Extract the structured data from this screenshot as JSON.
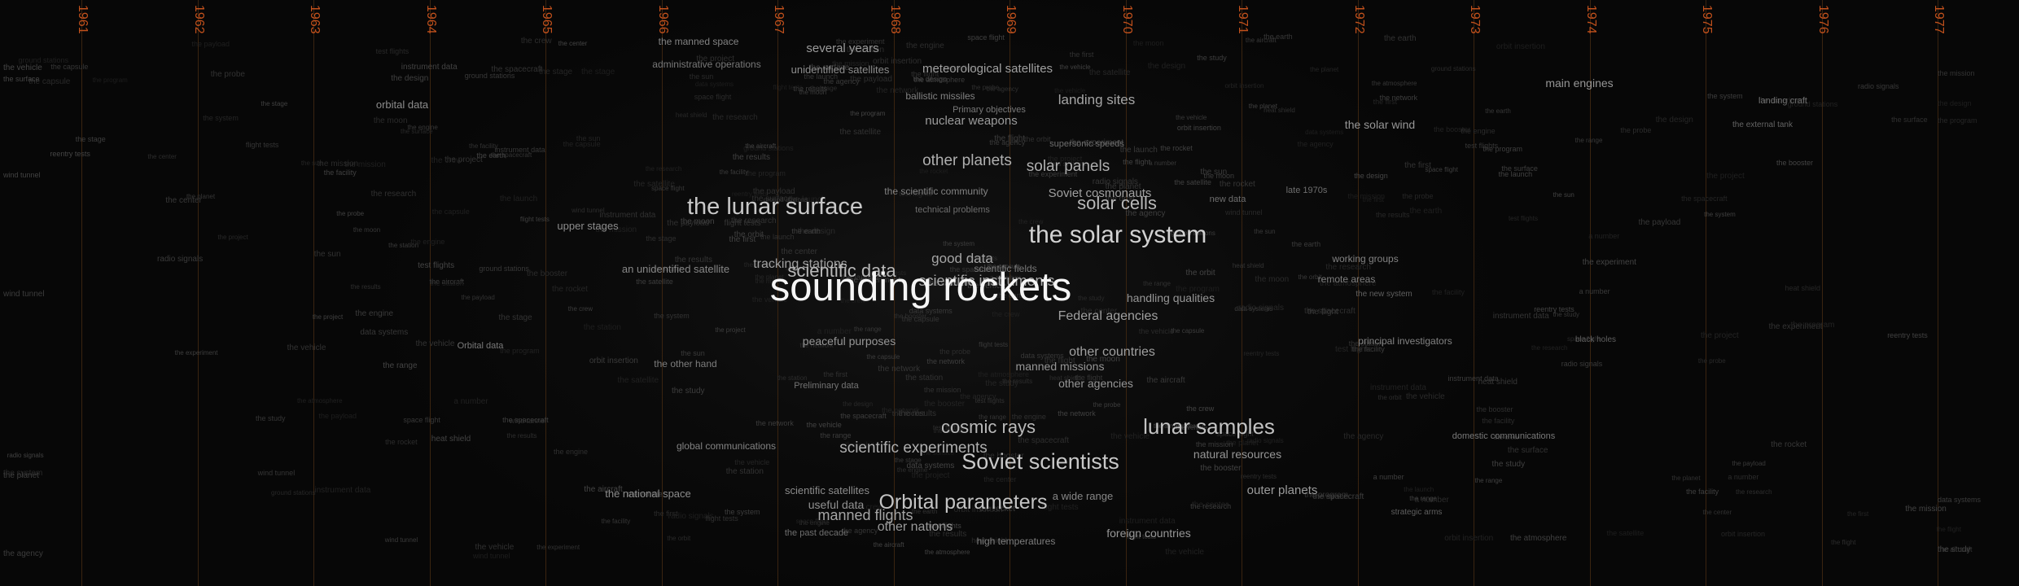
{
  "timeline": {
    "years": [
      "1961",
      "1962",
      "1963",
      "1964",
      "1965",
      "1966",
      "1967",
      "1968",
      "1969",
      "1970",
      "1971",
      "1972",
      "1973",
      "1974",
      "1975",
      "1976",
      "1977"
    ]
  },
  "colors": {
    "background": "#070707",
    "year_label": "#c2511c",
    "year_line": "#3a2410"
  },
  "phrases": [
    {
      "text": "the manned space",
      "size": 12,
      "grey": 130
    },
    {
      "text": "several years",
      "size": 15,
      "grey": 155
    },
    {
      "text": "administrative operations",
      "size": 12,
      "grey": 120
    },
    {
      "text": "unidentified satellites",
      "size": 13,
      "grey": 140
    },
    {
      "text": "meteorological satellites",
      "size": 15,
      "grey": 160
    },
    {
      "text": "main engines",
      "size": 14,
      "grey": 150
    },
    {
      "text": "orbital data",
      "size": 13,
      "grey": 140
    },
    {
      "text": "ballistic missiles",
      "size": 12,
      "grey": 130
    },
    {
      "text": "landing sites",
      "size": 17,
      "grey": 165
    },
    {
      "text": "landing craft",
      "size": 11,
      "grey": 110
    },
    {
      "text": "Primary objectives",
      "size": 11,
      "grey": 120
    },
    {
      "text": "nuclear weapons",
      "size": 15,
      "grey": 155
    },
    {
      "text": "the solar wind",
      "size": 14,
      "grey": 150
    },
    {
      "text": "the external tank",
      "size": 10,
      "grey": 100
    },
    {
      "text": "other planets",
      "size": 19,
      "grey": 175
    },
    {
      "text": "solar panels",
      "size": 19,
      "grey": 175
    },
    {
      "text": "the scientific community",
      "size": 12,
      "grey": 130
    },
    {
      "text": "Soviet cosmonauts",
      "size": 15,
      "grey": 160
    },
    {
      "text": "the lunar surface",
      "size": 29,
      "grey": 200
    },
    {
      "text": "solar cells",
      "size": 22,
      "grey": 185
    },
    {
      "text": "upper stages",
      "size": 13,
      "grey": 140
    },
    {
      "text": "the solar system",
      "size": 30,
      "grey": 210
    },
    {
      "text": "good data",
      "size": 17,
      "grey": 165
    },
    {
      "text": "tracking stations",
      "size": 16,
      "grey": 160
    },
    {
      "text": "an unidentified satellite",
      "size": 13,
      "grey": 135
    },
    {
      "text": "scientific data",
      "size": 22,
      "grey": 185
    },
    {
      "text": "working groups",
      "size": 12,
      "grey": 130
    },
    {
      "text": "scientific instruments",
      "size": 18,
      "grey": 170
    },
    {
      "text": "remote areas",
      "size": 12,
      "grey": 125
    },
    {
      "text": "sounding rockets",
      "size": 49,
      "grey": 245
    },
    {
      "text": "handling qualities",
      "size": 14,
      "grey": 150
    },
    {
      "text": "Federal agencies",
      "size": 16,
      "grey": 160
    },
    {
      "text": "peaceful purposes",
      "size": 14,
      "grey": 150
    },
    {
      "text": "principal investigators",
      "size": 12,
      "grey": 130
    },
    {
      "text": "Orbital data",
      "size": 11,
      "grey": 120
    },
    {
      "text": "other countries",
      "size": 16,
      "grey": 160
    },
    {
      "text": "the other hand",
      "size": 12,
      "grey": 125
    },
    {
      "text": "manned missions",
      "size": 14,
      "grey": 150
    },
    {
      "text": "other agencies",
      "size": 14,
      "grey": 150
    },
    {
      "text": "cosmic rays",
      "size": 22,
      "grey": 185
    },
    {
      "text": "lunar samples",
      "size": 26,
      "grey": 195
    },
    {
      "text": "domestic communications",
      "size": 11,
      "grey": 120
    },
    {
      "text": "global communications",
      "size": 12,
      "grey": 130
    },
    {
      "text": "scientific experiments",
      "size": 19,
      "grey": 175
    },
    {
      "text": "natural resources",
      "size": 14,
      "grey": 150
    },
    {
      "text": "Soviet scientists",
      "size": 27,
      "grey": 200
    },
    {
      "text": "the national space",
      "size": 13,
      "grey": 140
    },
    {
      "text": "scientific satellites",
      "size": 13,
      "grey": 140
    },
    {
      "text": "a wide range",
      "size": 13,
      "grey": 135
    },
    {
      "text": "outer planets",
      "size": 15,
      "grey": 155
    },
    {
      "text": "Orbital parameters",
      "size": 25,
      "grey": 195
    },
    {
      "text": "useful data",
      "size": 14,
      "grey": 145
    },
    {
      "text": "manned flights",
      "size": 18,
      "grey": 165
    },
    {
      "text": "other nations",
      "size": 16,
      "grey": 155
    },
    {
      "text": "foreign countries",
      "size": 14,
      "grey": 150
    },
    {
      "text": "high temperatures",
      "size": 12,
      "grey": 125
    },
    {
      "text": "strategic arms",
      "size": 10,
      "grey": 95
    },
    {
      "text": "black holes",
      "size": 10,
      "grey": 95
    },
    {
      "text": "late 1970s",
      "size": 11,
      "grey": 110
    },
    {
      "text": "new data",
      "size": 11,
      "grey": 110
    },
    {
      "text": "the new system",
      "size": 10,
      "grey": 95
    },
    {
      "text": "Preliminary data",
      "size": 11,
      "grey": 115
    },
    {
      "text": "scientific fields",
      "size": 12,
      "grey": 120
    },
    {
      "text": "technical problems",
      "size": 11,
      "grey": 110
    },
    {
      "text": "supersonic speeds",
      "size": 11,
      "grey": 110
    },
    {
      "text": "the past decade",
      "size": 11,
      "grey": 110
    }
  ],
  "noise_words": [
    "the program",
    "space flight",
    "data systems",
    "the project",
    "a number",
    "the agency",
    "the results",
    "the mission",
    "the spacecraft",
    "test flights",
    "the earth",
    "orbit insertion",
    "the vehicle",
    "the launch",
    "the moon",
    "the experiment",
    "ground stations",
    "the crew",
    "flight tests",
    "the engine",
    "the system",
    "wind tunnel",
    "the satellite",
    "the first",
    "the rocket",
    "the stage",
    "the payload",
    "the aircraft",
    "the flight",
    "instrument data",
    "the design",
    "the research",
    "the center",
    "the facility",
    "the probe",
    "the atmosphere",
    "the surface",
    "the study",
    "the orbit",
    "the range",
    "the vehicle",
    "reentry tests",
    "the capsule",
    "the booster",
    "heat shield",
    "the sun",
    "the planet",
    "radio signals",
    "the network",
    "the station"
  ]
}
